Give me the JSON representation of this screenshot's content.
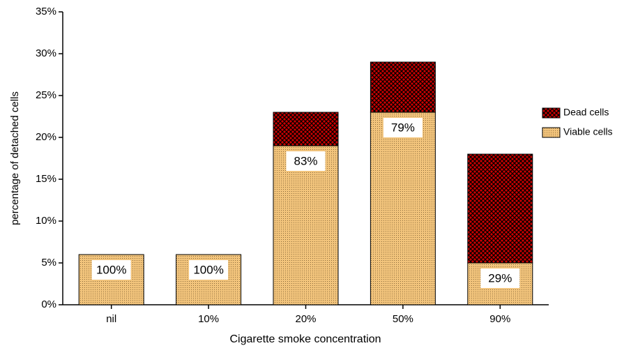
{
  "chart_data": {
    "type": "stacked_bar",
    "y_label": "percentage of detached cells",
    "x_label": "Cigarette smoke concentration",
    "categories": [
      "nil",
      "10%",
      "20%",
      "50%",
      "90%"
    ],
    "series": [
      {
        "name": "Viable cells",
        "color": "#f2c47c",
        "values": [
          6,
          6,
          19,
          23,
          5
        ]
      },
      {
        "name": "Dead cells",
        "color": "#cc0000",
        "values": [
          0,
          0,
          4,
          6,
          13
        ]
      }
    ],
    "annotations": [
      "100%",
      "100%",
      "83%",
      "79%",
      "29%"
    ],
    "ylim": [
      0,
      35
    ],
    "yticks": [
      {
        "value": 0,
        "label": "0%"
      },
      {
        "value": 5,
        "label": "5%"
      },
      {
        "value": 10,
        "label": "10%"
      },
      {
        "value": 15,
        "label": "15%"
      },
      {
        "value": 20,
        "label": "20%"
      },
      {
        "value": 25,
        "label": "25%"
      },
      {
        "value": 30,
        "label": "30%"
      },
      {
        "value": 35,
        "label": "35%"
      }
    ],
    "legend": "right"
  }
}
